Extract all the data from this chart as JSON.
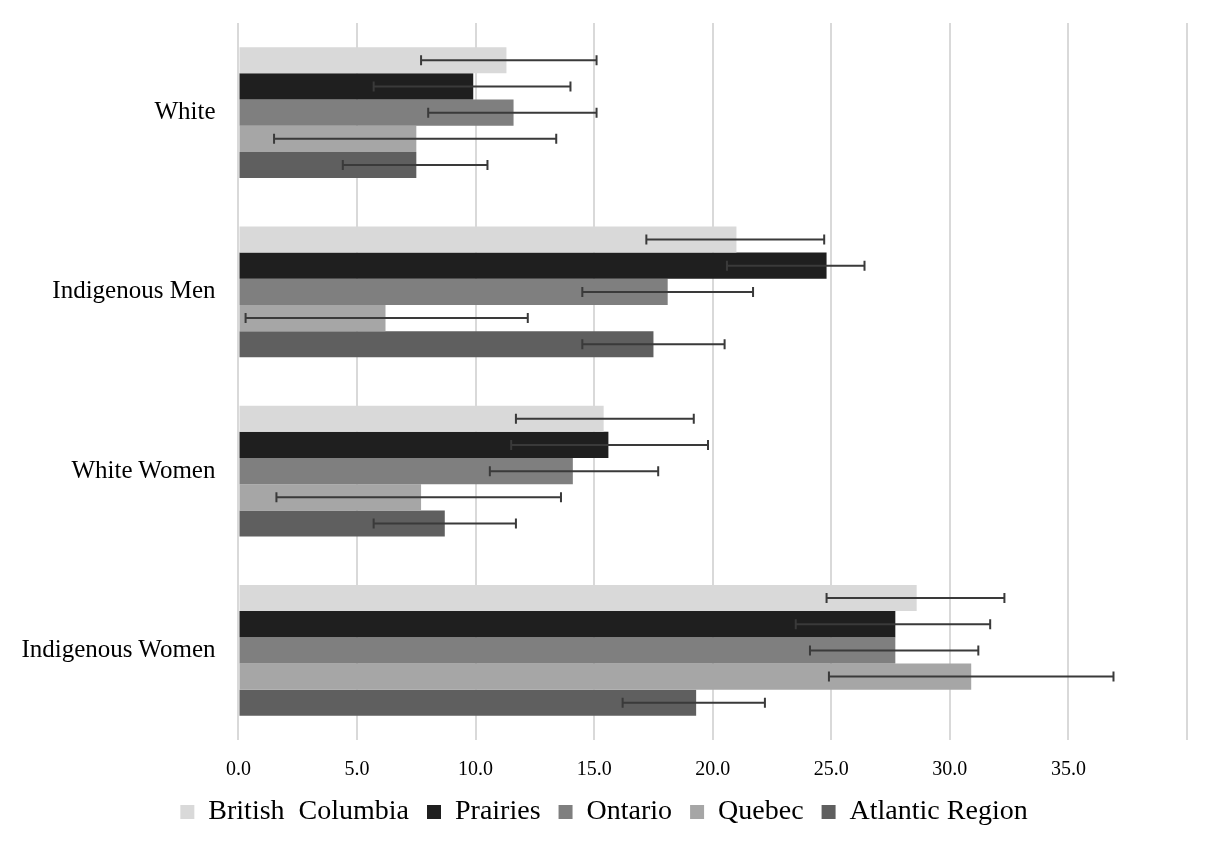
{
  "chart_data": {
    "type": "bar",
    "orientation": "horizontal",
    "categories": [
      "White",
      "Indigenous Men",
      "White Women",
      "Indigenous Women"
    ],
    "series": [
      {
        "name": "British  Columbia",
        "color": "#d9d9d9",
        "values": [
          11.3,
          21.0,
          15.4,
          28.6
        ],
        "errors": [
          [
            7.7,
            15.1
          ],
          [
            17.2,
            24.7
          ],
          [
            11.7,
            19.2
          ],
          [
            24.8,
            32.3
          ]
        ]
      },
      {
        "name": "Prairies",
        "color": "#1f1f1f",
        "values": [
          9.9,
          24.8,
          15.6,
          27.7
        ],
        "errors": [
          [
            5.7,
            14.0
          ],
          [
            20.6,
            26.4
          ],
          [
            11.5,
            19.8
          ],
          [
            23.5,
            31.7
          ]
        ]
      },
      {
        "name": "Ontario",
        "color": "#7f7f7f",
        "values": [
          11.6,
          18.1,
          14.1,
          27.7
        ],
        "errors": [
          [
            8.0,
            15.1
          ],
          [
            14.5,
            21.7
          ],
          [
            10.6,
            17.7
          ],
          [
            24.1,
            31.2
          ]
        ]
      },
      {
        "name": "Quebec",
        "color": "#a6a6a6",
        "values": [
          7.5,
          6.2,
          7.7,
          30.9
        ],
        "errors": [
          [
            1.5,
            13.4
          ],
          [
            0.3,
            12.2
          ],
          [
            1.6,
            13.6
          ],
          [
            24.9,
            36.9
          ]
        ]
      },
      {
        "name": "Atlantic Region",
        "color": "#5f5f5f",
        "values": [
          7.5,
          17.5,
          8.7,
          19.3
        ],
        "errors": [
          [
            4.4,
            10.5
          ],
          [
            14.5,
            20.5
          ],
          [
            5.7,
            11.7
          ],
          [
            16.2,
            22.2
          ]
        ]
      }
    ],
    "xlim": [
      0,
      40
    ],
    "xticks": [
      {
        "value": 0,
        "label": "0.0"
      },
      {
        "value": 5,
        "label": "5.0"
      },
      {
        "value": 10,
        "label": "10.0"
      },
      {
        "value": 15,
        "label": "15.0"
      },
      {
        "value": 20,
        "label": "20.0"
      },
      {
        "value": 25,
        "label": "25.0"
      },
      {
        "value": 30,
        "label": "30.0"
      },
      {
        "value": 35,
        "label": "35.0"
      },
      {
        "value": 40,
        "label": null
      }
    ],
    "grid": "x",
    "legend": "bottom"
  }
}
